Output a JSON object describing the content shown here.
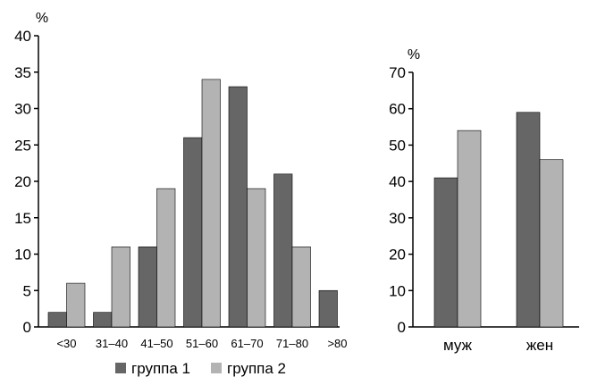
{
  "colors": {
    "series1": "#666666",
    "series2": "#b3b3b3",
    "axis": "#000000",
    "bar_stroke": "#000000"
  },
  "legend": {
    "items": [
      "группа 1",
      "группа 2"
    ],
    "placement": "bottom"
  },
  "chart_data": [
    {
      "type": "bar",
      "title": "",
      "xlabel": "",
      "ylabel": "%",
      "ylim": [
        0,
        40
      ],
      "yticks": [
        0,
        5,
        10,
        15,
        20,
        25,
        30,
        35,
        40
      ],
      "grid": false,
      "categories": [
        "<30",
        "31–40",
        "41–50",
        "51–60",
        "61–70",
        "71–80",
        ">80"
      ],
      "series": [
        {
          "name": "группа 1",
          "values": [
            2,
            2,
            11,
            26,
            33,
            21,
            5
          ]
        },
        {
          "name": "группа 2",
          "values": [
            6,
            11,
            19,
            34,
            19,
            11,
            0
          ]
        }
      ]
    },
    {
      "type": "bar",
      "title": "",
      "xlabel": "",
      "ylabel": "%",
      "ylim": [
        0,
        70
      ],
      "yticks": [
        0,
        10,
        20,
        30,
        40,
        50,
        60,
        70
      ],
      "grid": false,
      "categories": [
        "муж",
        "жен"
      ],
      "series": [
        {
          "name": "группа 1",
          "values": [
            41,
            59
          ]
        },
        {
          "name": "группа 2",
          "values": [
            54,
            46
          ]
        }
      ]
    }
  ]
}
